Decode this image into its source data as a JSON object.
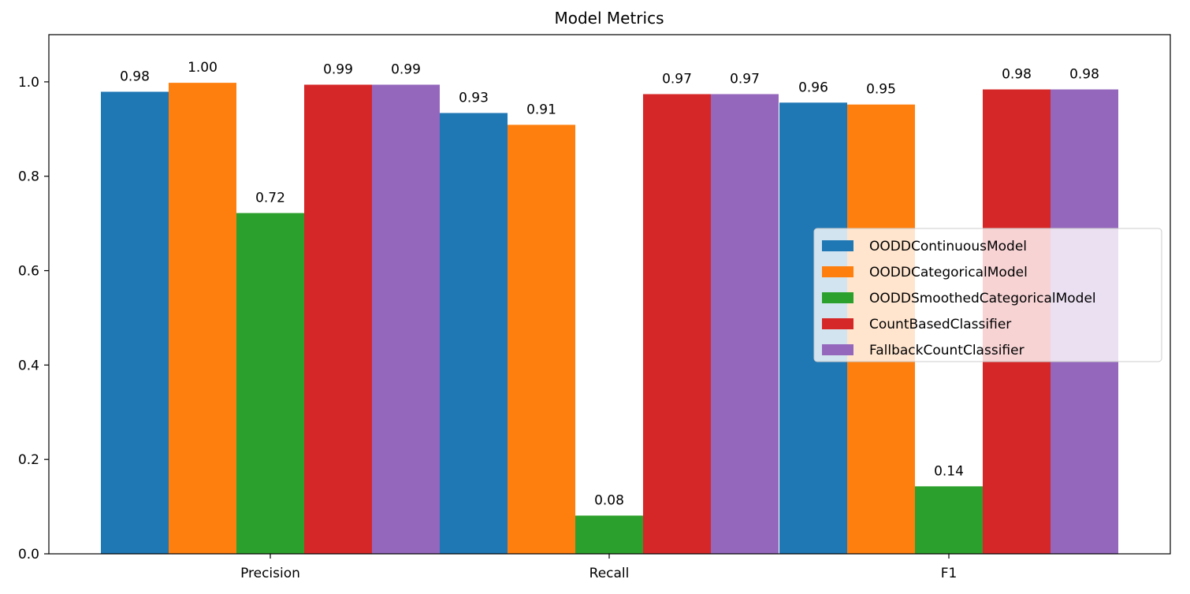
{
  "chart_data": {
    "type": "bar",
    "title": "Model Metrics",
    "xlabel": "",
    "ylabel": "",
    "categories": [
      "Precision",
      "Recall",
      "F1"
    ],
    "ylim": [
      0,
      1.1
    ],
    "yticks": [
      0.0,
      0.2,
      0.4,
      0.6,
      0.8,
      1.0
    ],
    "ytick_labels": [
      "0.0",
      "0.2",
      "0.4",
      "0.6",
      "0.8",
      "1.0"
    ],
    "grid": false,
    "legend_position": "center-right",
    "series": [
      {
        "name": "OODDContinuousModel",
        "color": "#1f77b4",
        "values": [
          0.979,
          0.934,
          0.956
        ],
        "labels": [
          "0.98",
          "0.93",
          "0.96"
        ]
      },
      {
        "name": "OODDCategoricalModel",
        "color": "#ff7f0e",
        "values": [
          0.998,
          0.909,
          0.952
        ],
        "labels": [
          "1.00",
          "0.91",
          "0.95"
        ]
      },
      {
        "name": "OODDSmoothedCategoricalModel",
        "color": "#2ca02c",
        "values": [
          0.722,
          0.081,
          0.143
        ],
        "labels": [
          "0.72",
          "0.08",
          "0.14"
        ]
      },
      {
        "name": "CountBasedClassifier",
        "color": "#d62728",
        "values": [
          0.994,
          0.974,
          0.984
        ],
        "labels": [
          "0.99",
          "0.97",
          "0.98"
        ]
      },
      {
        "name": "FallbackCountClassifier",
        "color": "#9467bd",
        "values": [
          0.994,
          0.974,
          0.984
        ],
        "labels": [
          "0.99",
          "0.97",
          "0.98"
        ]
      }
    ]
  }
}
